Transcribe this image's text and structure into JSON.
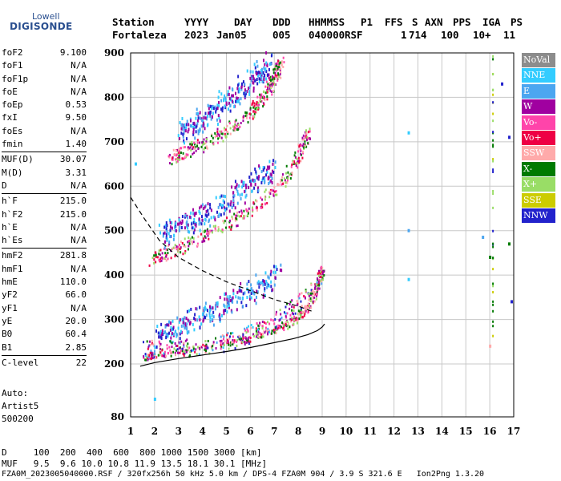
{
  "logo": {
    "line1": "Lowell",
    "line2": "DIGISONDE"
  },
  "header": {
    "labels": [
      "Station",
      "YYYY",
      "DAY",
      "DDD",
      "HHMMSS",
      "P1",
      "FFS",
      "S",
      "AXN",
      "PPS",
      "IGA",
      "PS"
    ],
    "values": [
      "Fortaleza",
      "2023",
      "Jan05",
      "005",
      "040000",
      "RSF",
      "1",
      "714",
      "100",
      "10+",
      "11"
    ]
  },
  "params": [
    {
      "group": [
        {
          "k": "foF2",
          "v": "9.100"
        },
        {
          "k": "foF1",
          "v": "N/A"
        },
        {
          "k": "foF1p",
          "v": "N/A"
        },
        {
          "k": "foE",
          "v": "N/A"
        },
        {
          "k": "foEp",
          "v": "0.53"
        },
        {
          "k": "fxI",
          "v": "9.50"
        },
        {
          "k": "foEs",
          "v": "N/A"
        },
        {
          "k": "fmin",
          "v": "1.40"
        }
      ]
    },
    {
      "group": [
        {
          "k": "MUF(D)",
          "v": "30.07"
        },
        {
          "k": "M(D)",
          "v": "3.31"
        },
        {
          "k": "D",
          "v": "N/A"
        }
      ]
    },
    {
      "group": [
        {
          "k": "h`F",
          "v": "215.0"
        },
        {
          "k": "h`F2",
          "v": "215.0"
        },
        {
          "k": "h`E",
          "v": "N/A"
        },
        {
          "k": "h`Es",
          "v": "N/A"
        }
      ]
    },
    {
      "group": [
        {
          "k": "hmF2",
          "v": "281.8"
        },
        {
          "k": "hmF1",
          "v": "N/A"
        },
        {
          "k": "hmE",
          "v": "110.0"
        },
        {
          "k": "yF2",
          "v": "66.0"
        },
        {
          "k": "yF1",
          "v": "N/A"
        },
        {
          "k": "yE",
          "v": "20.0"
        },
        {
          "k": "B0",
          "v": "60.4"
        },
        {
          "k": "B1",
          "v": "2.85"
        }
      ]
    },
    {
      "group": [
        {
          "k": "C-level",
          "v": "22"
        }
      ]
    }
  ],
  "auto": {
    "line1": "Auto:",
    "line2": "Artist5",
    "line3": "500200"
  },
  "legend": [
    {
      "label": "NoVal",
      "color": "#8c8c8c"
    },
    {
      "label": "NNE",
      "color": "#33ccff"
    },
    {
      "label": "E",
      "color": "#4ca6f0"
    },
    {
      "label": "W",
      "color": "#a000a0"
    },
    {
      "label": "Vo-",
      "color": "#ff44aa"
    },
    {
      "label": "Vo+",
      "color": "#ee0044"
    },
    {
      "label": "SSW",
      "color": "#ffaaaa"
    },
    {
      "label": "X-",
      "color": "#007a00"
    },
    {
      "label": "X+",
      "color": "#99dd66"
    },
    {
      "label": "SSE",
      "color": "#cccc00"
    },
    {
      "label": "NNW",
      "color": "#2222cc"
    }
  ],
  "footer": {
    "d_row": "D     100  200  400  600  800 1000 1500 3000 [km]",
    "muf_row": "MUF   9.5  9.6 10.0 10.8 11.9 13.5 18.1 30.1 [MHz]",
    "file_row": "FZA0M_2023005040000.RSF / 320fx256h 50 kHz 5.0 km / DPS-4 FZA0M 904 / 3.9 S 321.6 E   Ion2Png 1.3.20"
  },
  "chart_data": {
    "type": "scatter",
    "xlim": [
      1,
      17
    ],
    "ylim": [
      80,
      900
    ],
    "xticks": [
      1,
      2,
      3,
      4,
      5,
      6,
      7,
      8,
      9,
      10,
      11,
      12,
      13,
      14,
      15,
      16,
      17
    ],
    "yticks": [
      80,
      200,
      300,
      400,
      500,
      600,
      700,
      800,
      900
    ],
    "xlabel": "",
    "ylabel": "",
    "grid": true,
    "legend_position": "right",
    "profile_curve": {
      "x": [
        1.4,
        2,
        3,
        4,
        5,
        6,
        7,
        7.8,
        8.4,
        8.8,
        9.0,
        9.1
      ],
      "y": [
        195,
        203,
        212,
        220,
        228,
        237,
        248,
        257,
        266,
        275,
        283,
        290
      ]
    },
    "muf_curve": {
      "x": [
        1.0,
        1.6,
        2.2,
        3.0,
        4.0,
        5.0,
        6.0,
        7.0,
        8.0,
        8.6
      ],
      "y": [
        575,
        525,
        478,
        440,
        410,
        385,
        365,
        345,
        330,
        318
      ]
    },
    "traces": [
      {
        "name": "F-trace",
        "pts": [
          [
            1.6,
            215
          ],
          [
            2,
            220
          ],
          [
            3,
            228
          ],
          [
            4,
            236
          ],
          [
            5,
            246
          ],
          [
            6,
            258
          ],
          [
            7,
            275
          ],
          [
            7.5,
            287
          ],
          [
            8,
            305
          ],
          [
            8.4,
            330
          ],
          [
            8.7,
            360
          ],
          [
            8.9,
            395
          ],
          [
            9.0,
            415
          ]
        ]
      },
      {
        "name": "F-trace-2",
        "pts": [
          [
            1.8,
            430
          ],
          [
            2.5,
            445
          ],
          [
            3.5,
            468
          ],
          [
            4.5,
            495
          ],
          [
            5.5,
            525
          ],
          [
            6.5,
            565
          ],
          [
            7.2,
            600
          ],
          [
            7.8,
            645
          ],
          [
            8.2,
            690
          ],
          [
            8.4,
            720
          ]
        ]
      },
      {
        "name": "F-trace-3",
        "pts": [
          [
            2.6,
            660
          ],
          [
            3.2,
            672
          ],
          [
            4,
            690
          ],
          [
            5,
            720
          ],
          [
            6,
            760
          ],
          [
            6.6,
            800
          ],
          [
            7.0,
            840
          ],
          [
            7.3,
            880
          ]
        ]
      },
      {
        "name": "NNE-low",
        "pts": [
          [
            2.0,
            245
          ],
          [
            2.8,
            258
          ],
          [
            3.5,
            275
          ],
          [
            4.5,
            300
          ],
          [
            5.5,
            330
          ],
          [
            6.5,
            360
          ],
          [
            7.2,
            385
          ]
        ]
      },
      {
        "name": "NNE-mid",
        "pts": [
          [
            2.2,
            470
          ],
          [
            3.2,
            490
          ],
          [
            4.2,
            520
          ],
          [
            5.2,
            555
          ],
          [
            6.2,
            590
          ],
          [
            7.0,
            620
          ]
        ]
      },
      {
        "name": "NNE-high",
        "pts": [
          [
            3.0,
            700
          ],
          [
            4.0,
            730
          ],
          [
            5.0,
            770
          ],
          [
            6.0,
            815
          ],
          [
            6.8,
            860
          ]
        ]
      }
    ],
    "isolated": [
      {
        "x": 12.6,
        "y": 720,
        "color": "#33ccff"
      },
      {
        "x": 12.6,
        "y": 500,
        "color": "#4ca6f0"
      },
      {
        "x": 12.6,
        "y": 390,
        "color": "#33ccff"
      },
      {
        "x": 16.8,
        "y": 710,
        "color": "#2222cc"
      },
      {
        "x": 16.5,
        "y": 830,
        "color": "#2222cc"
      },
      {
        "x": 16.9,
        "y": 340,
        "color": "#2222cc"
      },
      {
        "x": 16.8,
        "y": 470,
        "color": "#007a00"
      },
      {
        "x": 15.7,
        "y": 485,
        "color": "#4ca6f0"
      },
      {
        "x": 16.0,
        "y": 440,
        "color": "#007a00"
      },
      {
        "x": 16.0,
        "y": 240,
        "color": "#ffaaaa"
      },
      {
        "x": 2.0,
        "y": 120,
        "color": "#33ccff"
      },
      {
        "x": 1.2,
        "y": 650,
        "color": "#33ccff"
      }
    ]
  }
}
